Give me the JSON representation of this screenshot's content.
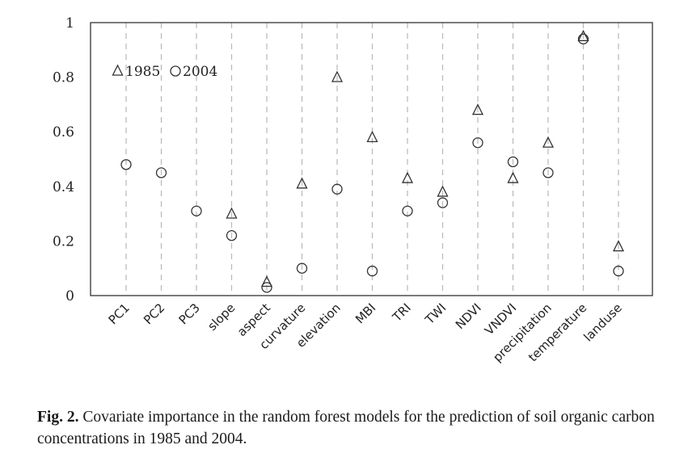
{
  "chart_data": {
    "type": "scatter",
    "categories": [
      "PC1",
      "PC2",
      "PC3",
      "slope",
      "aspect",
      "curvature",
      "elevation",
      "MBI",
      "TRI",
      "TWI",
      "NDVI",
      "VNDVI",
      "precipitation",
      "temperature",
      "landuse"
    ],
    "series": [
      {
        "name": "1985",
        "marker": "triangle",
        "values": [
          null,
          null,
          null,
          0.3,
          0.05,
          0.41,
          0.8,
          0.58,
          0.43,
          0.38,
          0.68,
          0.43,
          0.56,
          0.95,
          0.18
        ]
      },
      {
        "name": "2004",
        "marker": "circle",
        "values": [
          0.48,
          0.45,
          0.31,
          0.22,
          0.03,
          0.1,
          0.39,
          0.09,
          0.31,
          0.34,
          0.56,
          0.49,
          0.45,
          0.94,
          0.09
        ]
      }
    ],
    "yticks": [
      "0",
      "0.2",
      "0.4",
      "0.6",
      "0.8",
      "1"
    ],
    "ylim": [
      0,
      1
    ],
    "grid": "vertical-dashed",
    "legend_position": "top-left",
    "legend_items": [
      {
        "symbol": "triangle",
        "label": "1985"
      },
      {
        "symbol": "circle",
        "label": "2004"
      }
    ]
  },
  "caption": {
    "label": "Fig. 2.",
    "text": " Covariate importance in the random forest models for the prediction of soil organic carbon concentrations in 1985 and 2004."
  }
}
